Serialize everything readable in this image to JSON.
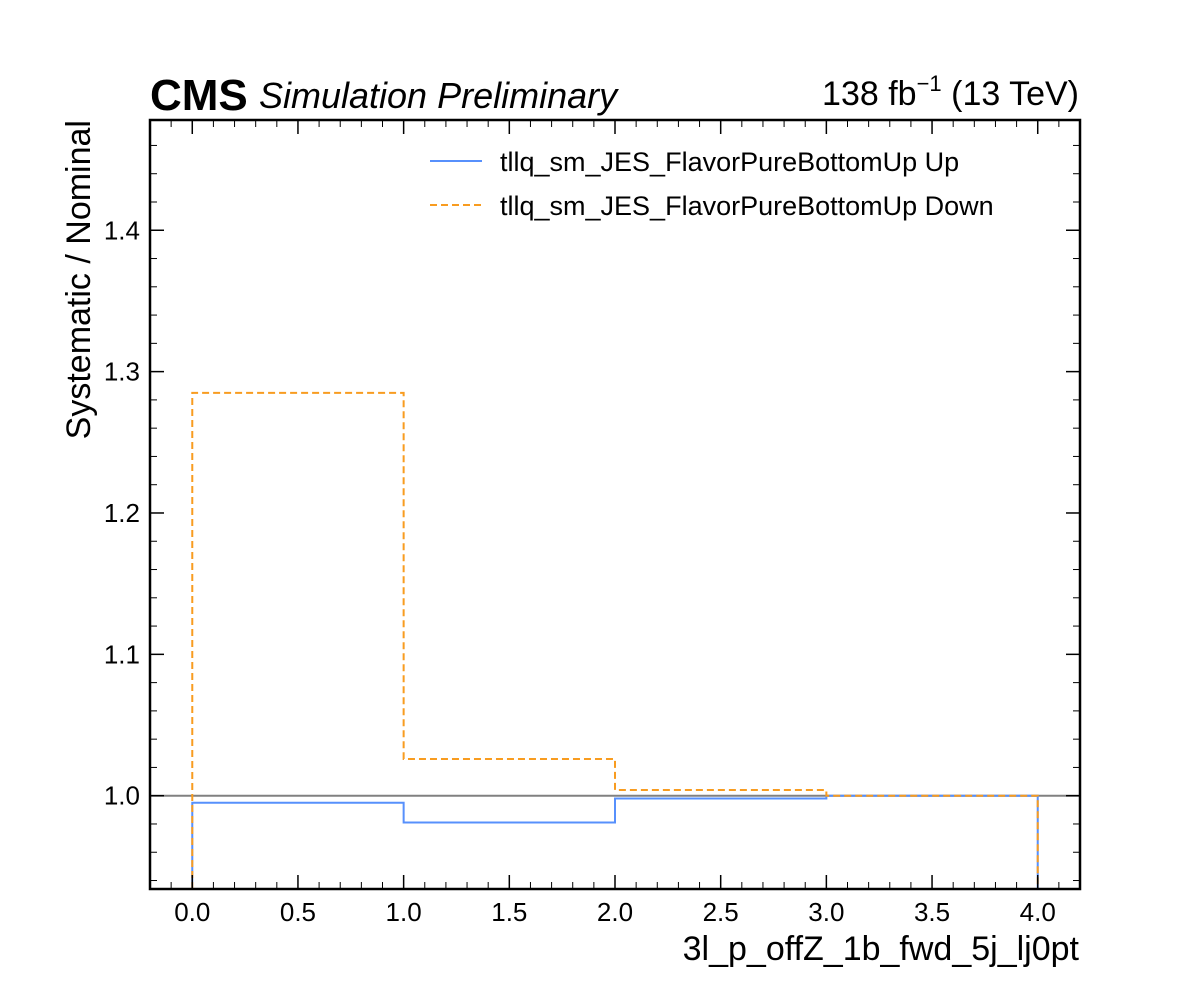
{
  "header": {
    "experiment": "CMS",
    "status": "Simulation Preliminary",
    "lumi_value": "138 fb",
    "lumi_exponent": "−1",
    "energy": " (13 TeV)"
  },
  "chart_data": {
    "type": "step-histogram",
    "xlabel": "3l_p_offZ_1b_fwd_5j_lj0pt",
    "ylabel": "Systematic / Nominal",
    "xlim": [
      -0.2,
      4.2
    ],
    "ylim": [
      0.934,
      1.478
    ],
    "x_ticks": [
      0.0,
      0.5,
      1.0,
      1.5,
      2.0,
      2.5,
      3.0,
      3.5,
      4.0
    ],
    "x_tick_labels": [
      "0.0",
      "0.5",
      "1.0",
      "1.5",
      "2.0",
      "2.5",
      "3.0",
      "3.5",
      "4.0"
    ],
    "y_ticks": [
      1.0,
      1.1,
      1.2,
      1.3,
      1.4
    ],
    "y_tick_labels": [
      "1.0",
      "1.1",
      "1.2",
      "1.3",
      "1.4"
    ],
    "bin_edges": [
      0,
      1,
      2,
      3,
      4
    ],
    "reference_line": {
      "y": 1.0,
      "color": "#808080"
    },
    "legend_position": "top-right",
    "series": [
      {
        "name": "tllq_sm_JES_FlavorPureBottomUp Up",
        "color": "#5790fc",
        "style": "solid",
        "values": [
          0.995,
          0.981,
          0.998,
          1.0
        ]
      },
      {
        "name": "tllq_sm_JES_FlavorPureBottomUp Down",
        "color": "#f89c20",
        "style": "dashed",
        "values": [
          1.285,
          1.026,
          1.004,
          1.0
        ]
      }
    ]
  }
}
